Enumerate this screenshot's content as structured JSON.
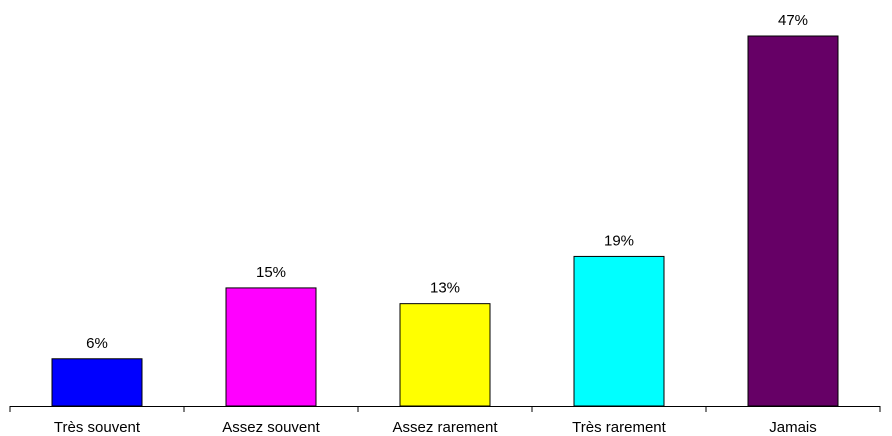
{
  "chart_data": {
    "type": "bar",
    "categories": [
      "Très souvent",
      "Assez souvent",
      "Assez rarement",
      "Très rarement",
      "Jamais"
    ],
    "values": [
      6,
      15,
      13,
      19,
      47
    ],
    "value_labels": [
      "6%",
      "15%",
      "13%",
      "19%",
      "47%"
    ],
    "colors": [
      "#0000ff",
      "#ff00ff",
      "#ffff00",
      "#00ffff",
      "#660066"
    ],
    "title": "",
    "xlabel": "",
    "ylabel": "",
    "ylim": [
      0,
      47
    ],
    "grid": false,
    "legend": "none"
  }
}
